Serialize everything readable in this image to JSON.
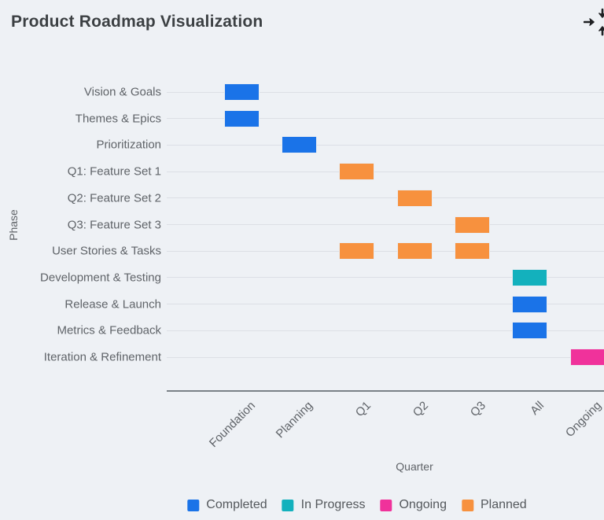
{
  "header": {
    "title": "Product Roadmap Visualization",
    "action_icon": "collapse-arrows-icon"
  },
  "colors": {
    "completed": "#1a73e8",
    "in_progress": "#13b1bd",
    "ongoing": "#f0329b",
    "planned": "#f7913e",
    "background": "#eef1f5",
    "gridline": "#dcdfe5",
    "axis_line": "#7a8187",
    "tick_text": "#5f6368",
    "title_text": "#3c4043",
    "legend_text": "#54585c",
    "icon": "#202124"
  },
  "chart_data": {
    "type": "bar",
    "subtype": "gantt",
    "title": "Product Roadmap Visualization",
    "xlabel": "Quarter",
    "ylabel": "Phase",
    "grid": "horizontal",
    "legend_position": "bottom",
    "x_categories": [
      "Foundation",
      "Planning",
      "Q1",
      "Q2",
      "Q3",
      "All",
      "Ongoing"
    ],
    "y_categories": [
      "Vision & Goals",
      "Themes & Epics",
      "Prioritization",
      "Q1: Feature Set 1",
      "Q2: Feature Set 2",
      "Q3: Feature Set 3",
      "User Stories & Tasks",
      "Development & Testing",
      "Release & Launch",
      "Metrics & Feedback",
      "Iteration & Refinement"
    ],
    "bars": [
      {
        "phase": "Vision & Goals",
        "quarter": "Foundation",
        "status": "completed"
      },
      {
        "phase": "Themes & Epics",
        "quarter": "Foundation",
        "status": "completed"
      },
      {
        "phase": "Prioritization",
        "quarter": "Planning",
        "status": "completed"
      },
      {
        "phase": "Q1: Feature Set 1",
        "quarter": "Q1",
        "status": "planned"
      },
      {
        "phase": "Q2: Feature Set 2",
        "quarter": "Q2",
        "status": "planned"
      },
      {
        "phase": "Q3: Feature Set 3",
        "quarter": "Q3",
        "status": "planned"
      },
      {
        "phase": "User Stories & Tasks",
        "quarter": "Q1",
        "status": "planned"
      },
      {
        "phase": "User Stories & Tasks",
        "quarter": "Q2",
        "status": "planned"
      },
      {
        "phase": "User Stories & Tasks",
        "quarter": "Q3",
        "status": "planned"
      },
      {
        "phase": "Development & Testing",
        "quarter": "All",
        "status": "in_progress"
      },
      {
        "phase": "Release & Launch",
        "quarter": "All",
        "status": "completed"
      },
      {
        "phase": "Metrics & Feedback",
        "quarter": "All",
        "status": "completed"
      },
      {
        "phase": "Iteration & Refinement",
        "quarter": "Ongoing",
        "status": "ongoing"
      }
    ],
    "legend": [
      {
        "label": "Completed",
        "status": "completed"
      },
      {
        "label": "In Progress",
        "status": "in_progress"
      },
      {
        "label": "Ongoing",
        "status": "ongoing"
      },
      {
        "label": "Planned",
        "status": "planned"
      }
    ]
  }
}
